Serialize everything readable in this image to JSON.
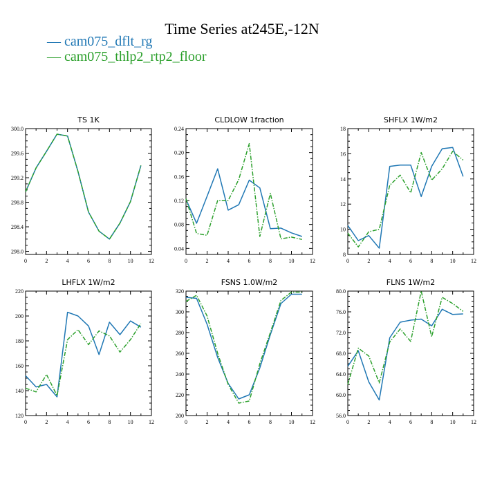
{
  "title": "Time Series at245E,-12N",
  "legend": [
    {
      "dash": "—",
      "label": "cam075_dflt_rg",
      "color": "#1f77b4"
    },
    {
      "dash": "—",
      "label": "cam075_thlp2_rtp2_floor",
      "color": "#2ca02c"
    }
  ],
  "chart_data": [
    {
      "type": "line",
      "title": "TS   1K",
      "x": [
        0,
        1,
        2,
        3,
        4,
        5,
        6,
        7,
        8,
        9,
        10,
        11
      ],
      "xlim": [
        0,
        12
      ],
      "xticks": [
        "0",
        "2",
        "4",
        "6",
        "8",
        "10",
        "12"
      ],
      "ylim": [
        297.95,
        300.0
      ],
      "yticks": [
        "298.0",
        "298.4",
        "298.8",
        "299.2",
        "299.6",
        "300.0"
      ],
      "series": [
        {
          "name": "cam075_dflt_rg",
          "color": "#1f77b4",
          "dashed": false,
          "values": [
            298.97,
            299.36,
            299.63,
            299.91,
            299.88,
            299.3,
            298.64,
            298.33,
            298.2,
            298.46,
            298.81,
            299.4
          ]
        },
        {
          "name": "cam075_thlp2_rtp2_floor",
          "color": "#2ca02c",
          "dashed": true,
          "values": [
            298.97,
            299.36,
            299.63,
            299.91,
            299.88,
            299.3,
            298.64,
            298.33,
            298.2,
            298.46,
            298.81,
            299.4
          ]
        }
      ]
    },
    {
      "type": "line",
      "title": "CLDLOW   1fraction",
      "x": [
        0,
        1,
        2,
        3,
        4,
        5,
        6,
        7,
        8,
        9,
        10,
        11
      ],
      "xlim": [
        0,
        12
      ],
      "xticks": [
        "0",
        "2",
        "4",
        "6",
        "8",
        "10",
        "12"
      ],
      "ylim": [
        0.03,
        0.24
      ],
      "yticks": [
        "0.04",
        "0.08",
        "0.12",
        "0.16",
        "0.20",
        "0.24"
      ],
      "series": [
        {
          "name": "cam075_dflt_rg",
          "color": "#1f77b4",
          "dashed": false,
          "values": [
            0.122,
            0.082,
            0.127,
            0.173,
            0.104,
            0.113,
            0.154,
            0.141,
            0.073,
            0.074,
            0.066,
            0.06
          ]
        },
        {
          "name": "cam075_thlp2_rtp2_floor",
          "color": "#2ca02c",
          "dashed": true,
          "values": [
            0.123,
            0.065,
            0.062,
            0.12,
            0.12,
            0.155,
            0.215,
            0.06,
            0.132,
            0.056,
            0.059,
            0.055
          ]
        }
      ]
    },
    {
      "type": "line",
      "title": "SHFLX   1W/m2",
      "x": [
        0,
        1,
        2,
        3,
        4,
        5,
        6,
        7,
        8,
        9,
        10,
        11
      ],
      "xlim": [
        0,
        12
      ],
      "xticks": [
        "0",
        "2",
        "4",
        "6",
        "8",
        "10",
        "12"
      ],
      "ylim": [
        8,
        18
      ],
      "yticks": [
        "8",
        "10",
        "12",
        "14",
        "16",
        "18"
      ],
      "series": [
        {
          "name": "cam075_dflt_rg",
          "color": "#1f77b4",
          "dashed": false,
          "values": [
            10.3,
            9.1,
            9.5,
            8.5,
            15.0,
            15.1,
            15.1,
            12.6,
            15.0,
            16.4,
            16.5,
            14.2
          ]
        },
        {
          "name": "cam075_thlp2_rtp2_floor",
          "color": "#2ca02c",
          "dashed": true,
          "values": [
            9.7,
            8.6,
            9.8,
            10.0,
            13.5,
            14.3,
            12.9,
            16.1,
            13.9,
            14.8,
            16.2,
            15.5
          ]
        }
      ]
    },
    {
      "type": "line",
      "title": "LHFLX   1W/m2",
      "x": [
        0,
        1,
        2,
        3,
        4,
        5,
        6,
        7,
        8,
        9,
        10,
        11
      ],
      "xlim": [
        0,
        12
      ],
      "xticks": [
        "0",
        "2",
        "4",
        "6",
        "8",
        "10",
        "12"
      ],
      "ylim": [
        120,
        220
      ],
      "yticks": [
        "120",
        "140",
        "160",
        "180",
        "200",
        "220"
      ],
      "series": [
        {
          "name": "cam075_dflt_rg",
          "color": "#1f77b4",
          "dashed": false,
          "values": [
            152,
            143,
            145,
            135,
            203,
            200,
            192,
            169,
            195,
            185,
            196,
            191
          ]
        },
        {
          "name": "cam075_thlp2_rtp2_floor",
          "color": "#2ca02c",
          "dashed": true,
          "values": [
            142,
            139,
            153,
            136,
            181,
            189,
            177,
            188,
            184,
            171,
            181,
            194
          ]
        }
      ]
    },
    {
      "type": "line",
      "title": "FSNS   1.0W/m2",
      "x": [
        0,
        1,
        2,
        3,
        4,
        5,
        6,
        7,
        8,
        9,
        10,
        11
      ],
      "xlim": [
        0,
        12
      ],
      "xticks": [
        "0",
        "2",
        "4",
        "6",
        "8",
        "10",
        "12"
      ],
      "ylim": [
        200,
        320
      ],
      "yticks": [
        "200",
        "220",
        "240",
        "260",
        "280",
        "300",
        "320"
      ],
      "series": [
        {
          "name": "cam075_dflt_rg",
          "color": "#1f77b4",
          "dashed": false,
          "values": [
            314,
            313,
            288,
            256,
            231,
            216,
            220,
            246,
            278,
            308,
            317,
            317
          ]
        },
        {
          "name": "cam075_thlp2_rtp2_floor",
          "color": "#2ca02c",
          "dashed": true,
          "values": [
            310,
            316,
            296,
            260,
            230,
            212,
            214,
            250,
            280,
            311,
            319,
            319
          ]
        }
      ]
    },
    {
      "type": "line",
      "title": "FLNS   1W/m2",
      "x": [
        0,
        1,
        2,
        3,
        4,
        5,
        6,
        7,
        8,
        9,
        10,
        11
      ],
      "xlim": [
        0,
        12
      ],
      "xticks": [
        "0",
        "2",
        "4",
        "6",
        "8",
        "10",
        "12"
      ],
      "ylim": [
        56,
        80
      ],
      "yticks": [
        "56.0",
        "60.0",
        "64.0",
        "68.0",
        "72.0",
        "76.0",
        "80.0"
      ],
      "series": [
        {
          "name": "cam075_dflt_rg",
          "color": "#1f77b4",
          "dashed": false,
          "values": [
            65.5,
            68.5,
            62.5,
            59.0,
            71.0,
            74.0,
            74.4,
            74.6,
            73.3,
            76.5,
            75.5,
            75.6
          ]
        },
        {
          "name": "cam075_thlp2_rtp2_floor",
          "color": "#2ca02c",
          "dashed": true,
          "values": [
            62.0,
            69.0,
            67.5,
            62.3,
            70.2,
            72.7,
            70.3,
            80.0,
            71.2,
            78.8,
            77.6,
            76.1
          ]
        }
      ]
    }
  ]
}
